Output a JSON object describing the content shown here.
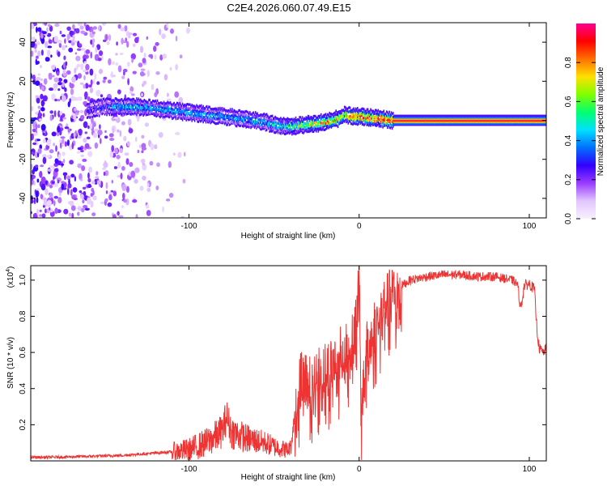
{
  "title": "C2E4.2026.060.07.49.E15",
  "chart_data": [
    {
      "type": "heatmap",
      "title": "C2E4.2026.060.07.49.E15",
      "xlabel": "Height of straight line (km)",
      "ylabel": "Frequency (Hz)",
      "xlim": [
        -193,
        110
      ],
      "ylim": [
        -50,
        50
      ],
      "x_ticks": [
        -100,
        0,
        100
      ],
      "y_ticks": [
        -40,
        -20,
        0,
        20,
        40
      ],
      "colorbar": {
        "label": "Normalized spectral amplitude",
        "range": [
          0.0,
          1.0
        ],
        "ticks": [
          0.0,
          0.2,
          0.4,
          0.6,
          0.8
        ],
        "colormap": [
          "#f8f0ff",
          "#e2c6ff",
          "#9a3cff",
          "#3300ff",
          "#0070ff",
          "#00e0ff",
          "#00ff70",
          "#80ff00",
          "#ffe000",
          "#ff7000",
          "#ff0000",
          "#ff0090"
        ]
      },
      "ridge": {
        "description_free": true,
        "x": [
          -193,
          -160,
          -150,
          -130,
          -110,
          -90,
          -70,
          -55,
          -45,
          -38,
          -30,
          -20,
          -12,
          -8,
          -4,
          0,
          10,
          20,
          110
        ],
        "frequency": [
          5,
          5,
          7,
          7,
          5,
          3,
          1,
          -1,
          -3,
          -3,
          -2,
          -1,
          1,
          3,
          2,
          2,
          1,
          0,
          0
        ],
        "amplitude": [
          0.15,
          0.25,
          0.35,
          0.45,
          0.45,
          0.42,
          0.4,
          0.45,
          0.5,
          0.6,
          0.7,
          0.75,
          0.8,
          0.8,
          0.85,
          0.85,
          0.9,
          0.95,
          0.95
        ]
      }
    },
    {
      "type": "line",
      "xlabel": "Height of straight line (km)",
      "ylabel": "SNR (10 * v/v)",
      "y_multiplier": "(x10",
      "y_multiplier_exp": "4",
      "y_multiplier_close": ")",
      "xlim": [
        -193,
        110
      ],
      "ylim": [
        0,
        1.08
      ],
      "x_ticks": [
        -100,
        0,
        100
      ],
      "y_ticks": [
        0.2,
        0.4,
        0.6,
        0.8,
        1.0
      ],
      "color": "#ee3333",
      "series": [
        {
          "name": "SNR",
          "x": [
            -193,
            -180,
            -160,
            -140,
            -125,
            -110,
            -100,
            -95,
            -90,
            -85,
            -80,
            -78,
            -75,
            -70,
            -65,
            -60,
            -55,
            -50,
            -46,
            -42,
            -40,
            -38,
            -36,
            -33,
            -30,
            -26,
            -22,
            -18,
            -14,
            -10,
            -6,
            -3,
            -1,
            0,
            1,
            4,
            8,
            12,
            16,
            20,
            25,
            30,
            40,
            50,
            60,
            70,
            80,
            90,
            93,
            95,
            97,
            100,
            103,
            104,
            105,
            106,
            108,
            110
          ],
          "y": [
            0.02,
            0.02,
            0.025,
            0.03,
            0.04,
            0.05,
            0.06,
            0.08,
            0.1,
            0.13,
            0.17,
            0.25,
            0.16,
            0.14,
            0.12,
            0.11,
            0.1,
            0.08,
            0.07,
            0.06,
            0.08,
            0.25,
            0.4,
            0.5,
            0.42,
            0.46,
            0.5,
            0.52,
            0.56,
            0.6,
            0.65,
            0.7,
            0.85,
            1.05,
            0.3,
            0.6,
            0.72,
            0.82,
            0.88,
            0.93,
            0.97,
            1.0,
            1.02,
            1.03,
            1.03,
            1.02,
            1.02,
            1.0,
            0.98,
            0.84,
            0.97,
            0.98,
            0.95,
            0.8,
            0.68,
            0.62,
            0.6,
            0.62
          ]
        }
      ]
    }
  ]
}
